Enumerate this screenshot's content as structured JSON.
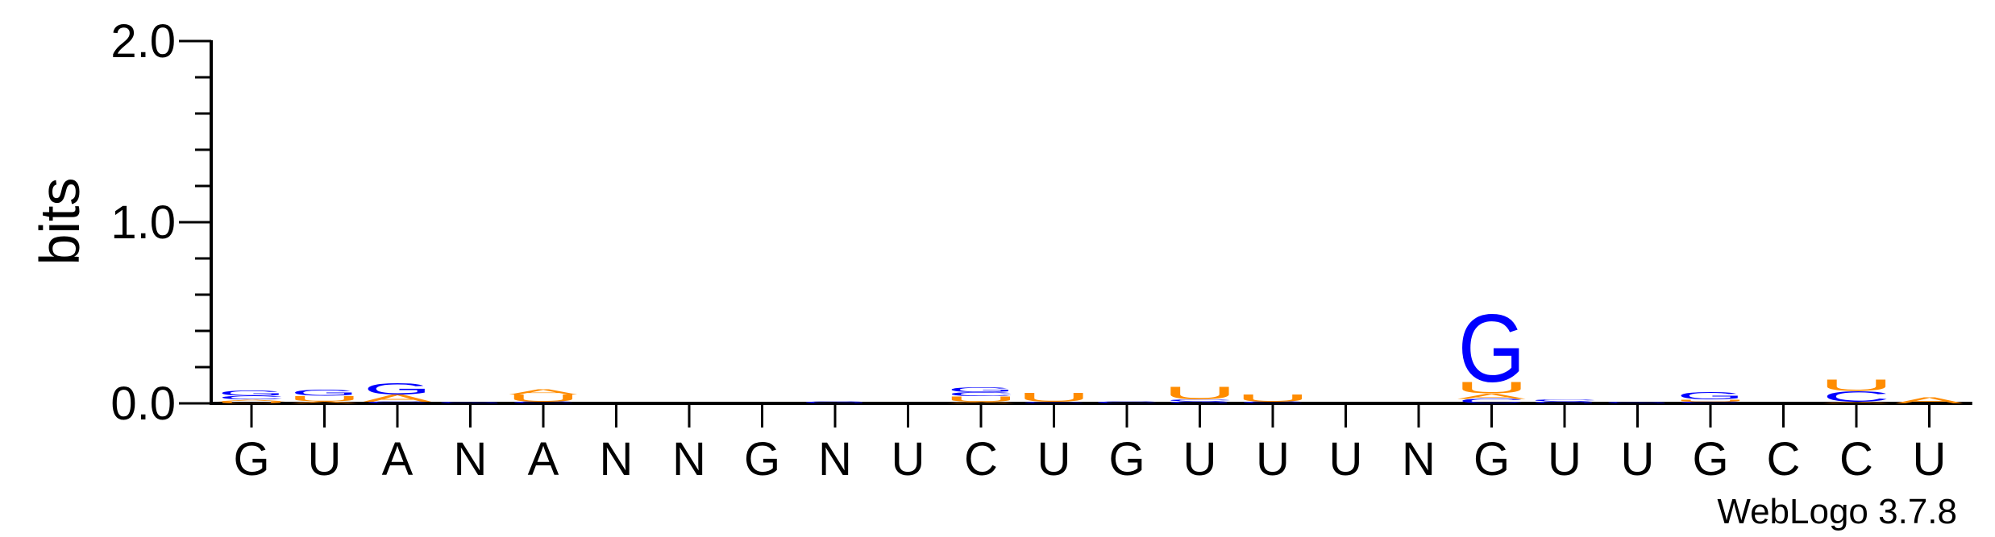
{
  "chart_data": {
    "type": "sequence-logo",
    "ylabel": "bits",
    "ylim": [
      0,
      2.0
    ],
    "yticks": [
      {
        "value": 0.0,
        "label": "0.0"
      },
      {
        "value": 1.0,
        "label": "1.0"
      },
      {
        "value": 2.0,
        "label": "2.0"
      }
    ],
    "minor_tick_step": 0.2,
    "colors": {
      "G": "#0000ff",
      "C": "#0000ff",
      "A": "#ff8c00",
      "U": "#ff8c00"
    },
    "positions": [
      {
        "consensus": "G",
        "stack": [
          {
            "base": "U",
            "bits": 0.012
          },
          {
            "base": "A",
            "bits": 0.01
          },
          {
            "base": "C",
            "bits": 0.02
          },
          {
            "base": "G",
            "bits": 0.03
          }
        ]
      },
      {
        "consensus": "U",
        "stack": [
          {
            "base": "A",
            "bits": 0.012
          },
          {
            "base": "U",
            "bits": 0.03
          },
          {
            "base": "G",
            "bits": 0.035
          }
        ]
      },
      {
        "consensus": "A",
        "stack": [
          {
            "base": "C",
            "bits": 0.01
          },
          {
            "base": "A",
            "bits": 0.04
          },
          {
            "base": "G",
            "bits": 0.065
          }
        ]
      },
      {
        "consensus": "N",
        "stack": [
          {
            "base": "G",
            "bits": 0.01
          }
        ]
      },
      {
        "consensus": "A",
        "stack": [
          {
            "base": "C",
            "bits": 0.01
          },
          {
            "base": "U",
            "bits": 0.04
          },
          {
            "base": "A",
            "bits": 0.03
          }
        ]
      },
      {
        "consensus": "N",
        "stack": []
      },
      {
        "consensus": "N",
        "stack": []
      },
      {
        "consensus": "G",
        "stack": []
      },
      {
        "consensus": "N",
        "stack": [
          {
            "base": "G",
            "bits": 0.012
          }
        ]
      },
      {
        "consensus": "U",
        "stack": []
      },
      {
        "consensus": "C",
        "stack": [
          {
            "base": "A",
            "bits": 0.01
          },
          {
            "base": "U",
            "bits": 0.03
          },
          {
            "base": "C",
            "bits": 0.022
          },
          {
            "base": "G",
            "bits": 0.025
          }
        ]
      },
      {
        "consensus": "U",
        "stack": [
          {
            "base": "C",
            "bits": 0.008
          },
          {
            "base": "U",
            "bits": 0.05
          }
        ]
      },
      {
        "consensus": "G",
        "stack": [
          {
            "base": "C",
            "bits": 0.01
          }
        ]
      },
      {
        "consensus": "U",
        "stack": [
          {
            "base": "G",
            "bits": 0.012
          },
          {
            "base": "C",
            "bits": 0.01
          },
          {
            "base": "U",
            "bits": 0.07
          }
        ]
      },
      {
        "consensus": "U",
        "stack": [
          {
            "base": "C",
            "bits": 0.01
          },
          {
            "base": "U",
            "bits": 0.04
          }
        ]
      },
      {
        "consensus": "U",
        "stack": []
      },
      {
        "consensus": "N",
        "stack": []
      },
      {
        "consensus": "G",
        "stack": [
          {
            "base": "C",
            "bits": 0.025
          },
          {
            "base": "A",
            "bits": 0.03
          },
          {
            "base": "U",
            "bits": 0.065
          },
          {
            "base": "G",
            "bits": 0.38
          }
        ]
      },
      {
        "consensus": "U",
        "stack": [
          {
            "base": "G",
            "bits": 0.012
          },
          {
            "base": "C",
            "bits": 0.01
          }
        ]
      },
      {
        "consensus": "U",
        "stack": [
          {
            "base": "G",
            "bits": 0.01
          }
        ]
      },
      {
        "consensus": "G",
        "stack": [
          {
            "base": "C",
            "bits": 0.01
          },
          {
            "base": "U",
            "bits": 0.012
          },
          {
            "base": "G",
            "bits": 0.04
          }
        ]
      },
      {
        "consensus": "C",
        "stack": []
      },
      {
        "consensus": "C",
        "stack": [
          {
            "base": "A",
            "bits": 0.01
          },
          {
            "base": "C",
            "bits": 0.06
          },
          {
            "base": "U",
            "bits": 0.065
          }
        ]
      },
      {
        "consensus": "U",
        "stack": [
          {
            "base": "A",
            "bits": 0.035
          }
        ]
      }
    ]
  },
  "credit": "WebLogo 3.7.8"
}
